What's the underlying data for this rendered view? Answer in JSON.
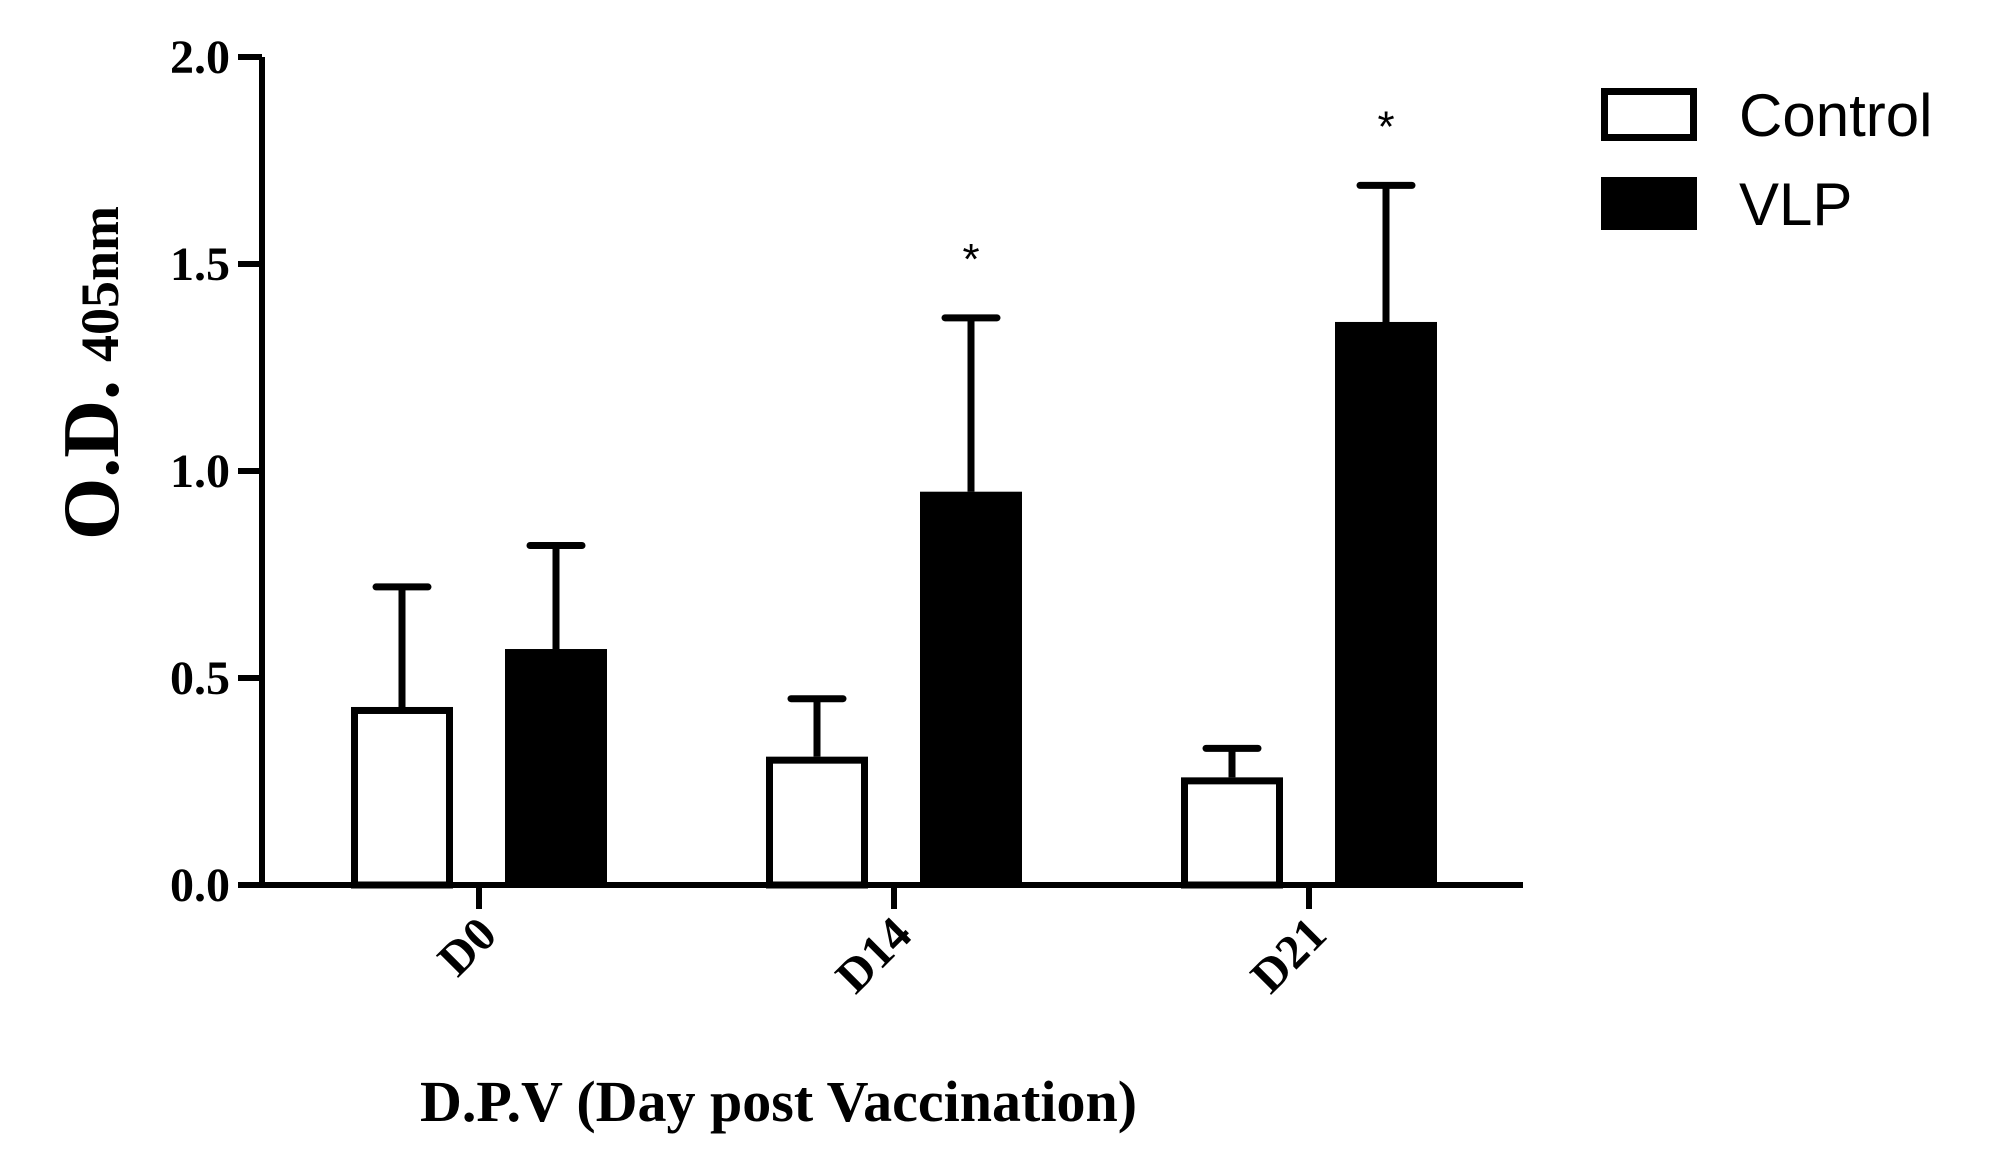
{
  "chart_data": {
    "type": "bar",
    "categories": [
      "D0",
      "D14",
      "D21"
    ],
    "series": [
      {
        "name": "Control",
        "values": [
          0.43,
          0.31,
          0.26
        ],
        "errors": [
          0.29,
          0.14,
          0.07
        ],
        "significance": [
          "",
          "",
          ""
        ],
        "fill": "#ffffff"
      },
      {
        "name": "VLP",
        "values": [
          0.57,
          0.95,
          1.36
        ],
        "errors": [
          0.25,
          0.42,
          0.33
        ],
        "significance": [
          "",
          "*",
          "*"
        ],
        "fill": "#000000"
      }
    ],
    "ylabel_main": "O.D.",
    "ylabel_sub": "405nm",
    "xlabel": "D.P.V (Day post Vaccination)",
    "ylim": [
      0,
      2.0
    ],
    "yticks": [
      "0.0",
      "0.5",
      "1.0",
      "1.5",
      "2.0"
    ],
    "ytick_values": [
      0,
      0.5,
      1.0,
      1.5,
      2.0
    ],
    "legend_position": "top-right",
    "grid": false
  }
}
